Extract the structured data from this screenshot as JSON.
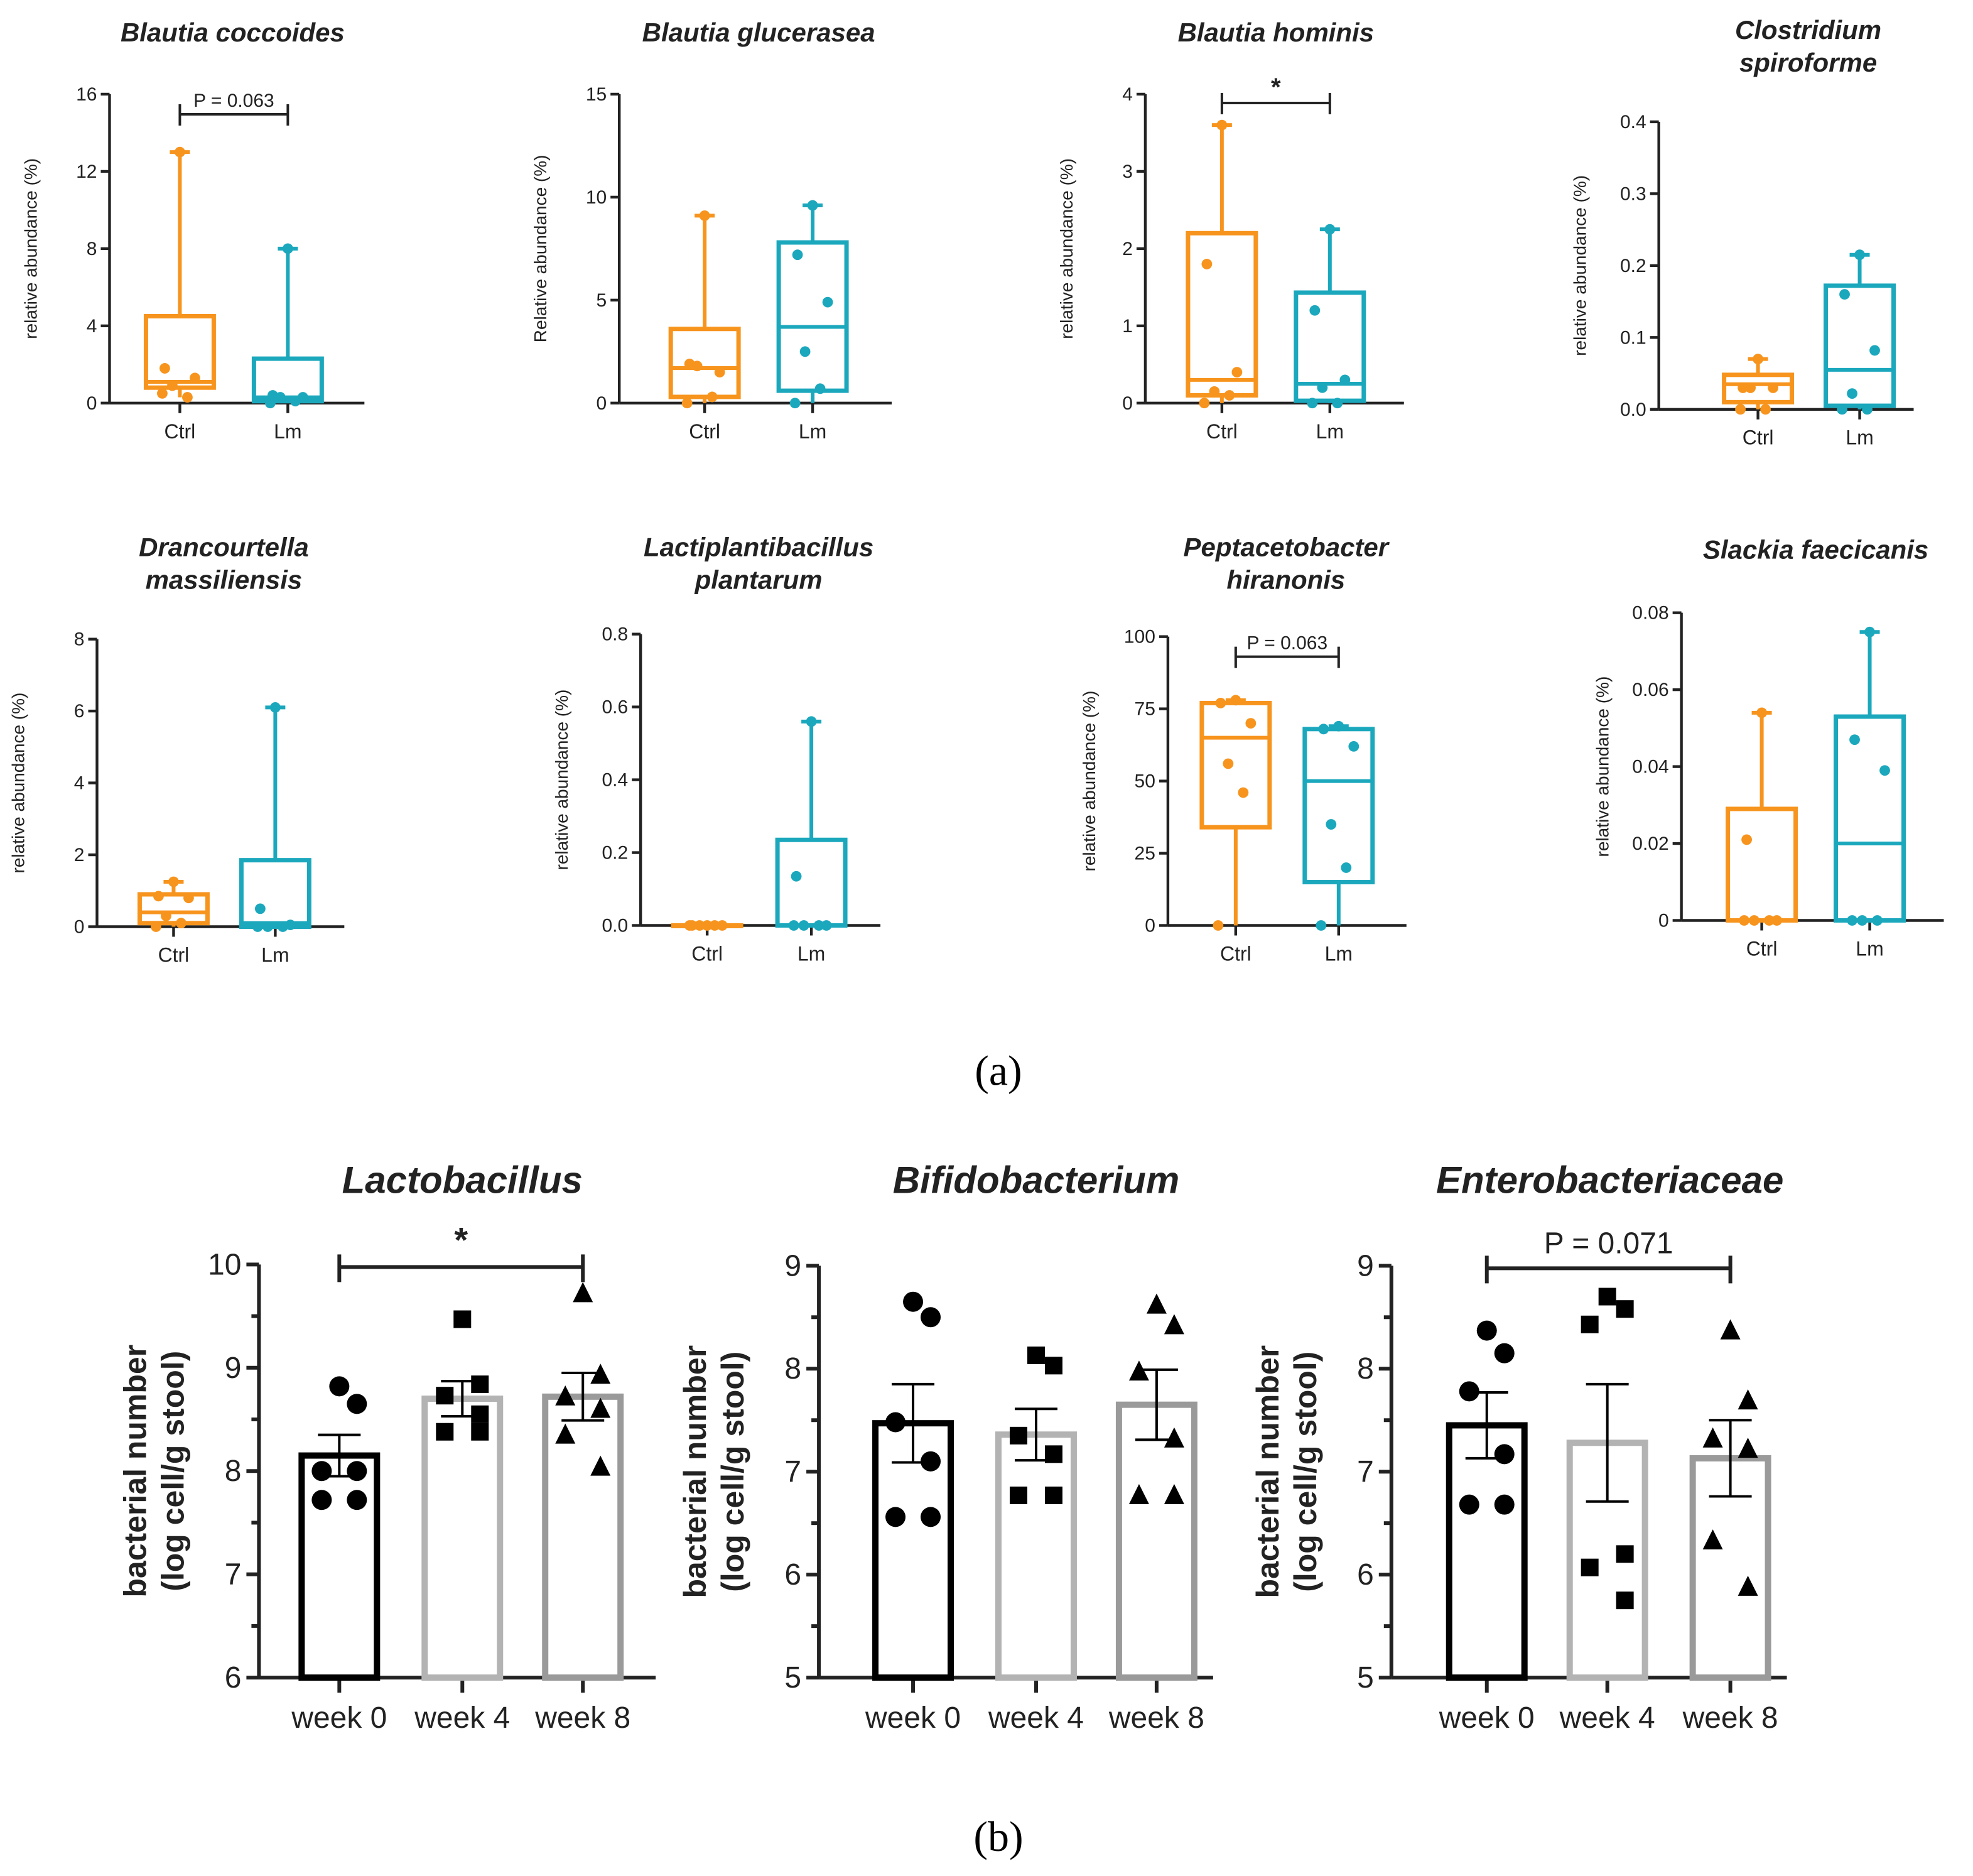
{
  "panel_labels": {
    "a": "(a)",
    "b": "(b)"
  },
  "colors": {
    "ctrl": "#f7941d",
    "lm": "#1ba8bd",
    "week0": "#000000",
    "week4": "#b3b3b3",
    "week8": "#9a9a9a"
  },
  "chart_data": [
    {
      "type": "box",
      "title": "Blautia coccoides",
      "ylabel": "relative abundance (%)",
      "ylim": [
        0,
        16
      ],
      "yticks": [
        "0",
        "4",
        "8",
        "12",
        "16"
      ],
      "yticks_values": [
        0,
        4,
        8,
        12,
        16
      ],
      "categories": [
        "Ctrl",
        "Lm"
      ],
      "groups": [
        {
          "min": 0.3,
          "q1": 0.8,
          "median": 1.1,
          "q3": 4.5,
          "max": 13,
          "points": [
            13,
            1.8,
            1.3,
            0.9,
            0.3,
            0.5
          ]
        },
        {
          "min": 0,
          "q1": 0.1,
          "median": 0.3,
          "q3": 2.3,
          "max": 8,
          "points": [
            8,
            0.4,
            0.3,
            0.3,
            0.1,
            0
          ]
        }
      ],
      "annotation": "P = 0.063"
    },
    {
      "type": "box",
      "title": "Blautia glucerasea",
      "ylabel": "Relative abundance (%)",
      "ylim": [
        0,
        15
      ],
      "yticks": [
        "0",
        "5",
        "10",
        "15"
      ],
      "yticks_values": [
        0,
        5,
        10,
        15
      ],
      "categories": [
        "Ctrl",
        "Lm"
      ],
      "groups": [
        {
          "min": 0,
          "q1": 0.3,
          "median": 1.7,
          "q3": 3.6,
          "max": 9.1,
          "points": [
            9.1,
            1.9,
            1.5,
            1.8,
            0.3,
            0
          ]
        },
        {
          "min": 0,
          "q1": 0.6,
          "median": 3.7,
          "q3": 7.8,
          "max": 9.6,
          "points": [
            9.6,
            7.2,
            4.9,
            2.5,
            0.7,
            0
          ]
        }
      ],
      "annotation": ""
    },
    {
      "type": "box",
      "title": "Blautia hominis",
      "ylabel": "relative abundance (%)",
      "ylim": [
        0,
        4
      ],
      "yticks": [
        "0",
        "1",
        "2",
        "3",
        "4"
      ],
      "yticks_values": [
        0,
        1,
        2,
        3,
        4
      ],
      "categories": [
        "Ctrl",
        "Lm"
      ],
      "groups": [
        {
          "min": 0,
          "q1": 0.1,
          "median": 0.3,
          "q3": 2.2,
          "max": 3.6,
          "points": [
            3.6,
            1.8,
            0.4,
            0.15,
            0.1,
            0
          ]
        },
        {
          "min": 0,
          "q1": 0.03,
          "median": 0.25,
          "q3": 1.43,
          "max": 2.25,
          "points": [
            2.25,
            1.2,
            0.3,
            0.2,
            0,
            0
          ]
        }
      ],
      "annotation": "*"
    },
    {
      "type": "box",
      "title": "Clostridium spiroforme",
      "ylabel": "relative abundance (%)",
      "ylim": [
        0,
        0.4
      ],
      "yticks": [
        "0.0",
        "0.1",
        "0.2",
        "0.3",
        "0.4"
      ],
      "yticks_values": [
        0,
        0.1,
        0.2,
        0.3,
        0.4
      ],
      "categories": [
        "Ctrl",
        "Lm"
      ],
      "groups": [
        {
          "min": 0,
          "q1": 0.01,
          "median": 0.035,
          "q3": 0.048,
          "max": 0.07,
          "points": [
            0.07,
            0.03,
            0.03,
            0.03,
            0,
            0
          ]
        },
        {
          "min": 0,
          "q1": 0.005,
          "median": 0.055,
          "q3": 0.172,
          "max": 0.215,
          "points": [
            0.215,
            0.16,
            0.082,
            0.022,
            0,
            0
          ]
        }
      ],
      "annotation": ""
    },
    {
      "type": "box",
      "title": "Drancourtella massiliensis",
      "ylabel": "relative abundance (%)",
      "ylim": [
        0,
        8
      ],
      "yticks": [
        "0",
        "2",
        "4",
        "6",
        "8"
      ],
      "yticks_values": [
        0,
        2,
        4,
        6,
        8
      ],
      "categories": [
        "Ctrl",
        "Lm"
      ],
      "groups": [
        {
          "min": 0,
          "q1": 0.1,
          "median": 0.4,
          "q3": 0.9,
          "max": 1.25,
          "points": [
            1.25,
            0.85,
            0.8,
            0.3,
            0.1,
            0
          ]
        },
        {
          "min": 0,
          "q1": 0,
          "median": 0.1,
          "q3": 1.85,
          "max": 6.1,
          "points": [
            6.1,
            0.5,
            0.05,
            0,
            0,
            0
          ]
        }
      ],
      "annotation": ""
    },
    {
      "type": "box",
      "title": "Lactiplantibacillus plantarum",
      "ylabel": "relative abundance (%)",
      "ylim": [
        0,
        0.8
      ],
      "yticks": [
        "0.0",
        "0.2",
        "0.4",
        "0.6",
        "0.8"
      ],
      "yticks_values": [
        0,
        0.2,
        0.4,
        0.6,
        0.8
      ],
      "categories": [
        "Ctrl",
        "Lm"
      ],
      "groups": [
        {
          "min": 0,
          "q1": 0,
          "median": 0,
          "q3": 0,
          "max": 0,
          "points": [
            0,
            0,
            0,
            0,
            0,
            0
          ]
        },
        {
          "min": 0,
          "q1": 0,
          "median": 0,
          "q3": 0.235,
          "max": 0.56,
          "points": [
            0.56,
            0.135,
            0,
            0,
            0,
            0
          ]
        }
      ],
      "annotation": ""
    },
    {
      "type": "box",
      "title": "Peptacetobacter hiranonis",
      "ylabel": "relative abundance (%)",
      "ylim": [
        0,
        100
      ],
      "yticks": [
        "0",
        "25",
        "50",
        "75",
        "100"
      ],
      "yticks_values": [
        0,
        25,
        50,
        75,
        100
      ],
      "categories": [
        "Ctrl",
        "Lm"
      ],
      "groups": [
        {
          "min": 0,
          "q1": 34,
          "median": 65,
          "q3": 77,
          "max": 78,
          "points": [
            78,
            77,
            70,
            56,
            46,
            0
          ]
        },
        {
          "min": 0,
          "q1": 15,
          "median": 50,
          "q3": 68,
          "max": 69,
          "points": [
            69,
            68,
            62,
            35,
            20,
            0
          ]
        }
      ],
      "annotation": "P = 0.063"
    },
    {
      "type": "box",
      "title": "Slackia faecicanis",
      "ylabel": "relative abundance (%)",
      "ylim": [
        0,
        0.08
      ],
      "yticks": [
        "0",
        "0.02",
        "0.04",
        "0.06",
        "0.08"
      ],
      "yticks_values": [
        0,
        0.02,
        0.04,
        0.06,
        0.08
      ],
      "categories": [
        "Ctrl",
        "Lm"
      ],
      "groups": [
        {
          "min": 0,
          "q1": 0,
          "median": 0,
          "q3": 0.029,
          "max": 0.054,
          "points": [
            0.054,
            0.021,
            0,
            0,
            0,
            0
          ]
        },
        {
          "min": 0,
          "q1": 0,
          "median": 0.02,
          "q3": 0.053,
          "max": 0.075,
          "points": [
            0.075,
            0.047,
            0.039,
            0,
            0,
            0
          ]
        }
      ],
      "annotation": ""
    },
    {
      "type": "bar",
      "title": "Lactobacillus",
      "ylabel": "bacterial number",
      "ylabel2": "(log cell/g stool)",
      "ylim": [
        6,
        10
      ],
      "yticks": [
        "6",
        "7",
        "8",
        "9",
        "10"
      ],
      "yticks_values": [
        6,
        7,
        8,
        9,
        10
      ],
      "categories": [
        "week 0",
        "week 4",
        "week 8"
      ],
      "means": [
        8.15,
        8.7,
        8.72
      ],
      "sem": [
        0.2,
        0.17,
        0.23
      ],
      "points": [
        [
          8.82,
          8.65,
          8.0,
          8.0,
          7.72,
          7.72
        ],
        [
          9.47,
          8.84,
          8.73,
          8.55,
          8.38,
          8.38
        ],
        [
          9.72,
          8.93,
          8.72,
          8.6,
          8.35,
          8.04
        ]
      ],
      "markers": [
        "circle",
        "square",
        "triangle"
      ],
      "annotation": "*"
    },
    {
      "type": "bar",
      "title": "Bifidobacterium",
      "ylabel": "bacterial number",
      "ylabel2": "(log cell/g stool)",
      "ylim": [
        5,
        9
      ],
      "yticks": [
        "5",
        "6",
        "7",
        "8",
        "9"
      ],
      "yticks_values": [
        5,
        6,
        7,
        8,
        9
      ],
      "categories": [
        "week 0",
        "week 4",
        "week 8"
      ],
      "means": [
        7.47,
        7.36,
        7.65
      ],
      "sem": [
        0.38,
        0.25,
        0.34
      ],
      "points": [
        [
          8.65,
          8.5,
          7.48,
          7.1,
          6.56,
          6.56
        ],
        [
          8.13,
          8.03,
          7.35,
          7.17,
          6.77,
          6.77
        ],
        [
          8.62,
          8.42,
          7.97,
          7.32,
          6.77,
          6.77
        ]
      ],
      "markers": [
        "circle",
        "square",
        "triangle"
      ],
      "annotation": ""
    },
    {
      "type": "bar",
      "title": "Enterobacteriaceae",
      "ylabel": "bacterial number",
      "ylabel2": "(log cell/g stool)",
      "ylim": [
        5,
        9
      ],
      "yticks": [
        "5",
        "6",
        "7",
        "8",
        "9"
      ],
      "yticks_values": [
        5,
        6,
        7,
        8,
        9
      ],
      "categories": [
        "week 0",
        "week 4",
        "week 8"
      ],
      "means": [
        7.45,
        7.28,
        7.13
      ],
      "sem": [
        0.32,
        0.57,
        0.37
      ],
      "points": [
        [
          8.37,
          8.15,
          7.78,
          7.17,
          6.68,
          6.68
        ],
        [
          8.7,
          8.58,
          8.43,
          6.2,
          6.07,
          5.75
        ],
        [
          8.37,
          7.69,
          7.32,
          7.22,
          6.33,
          5.88
        ]
      ],
      "markers": [
        "circle",
        "square",
        "triangle"
      ],
      "annotation": "P = 0.071"
    }
  ]
}
